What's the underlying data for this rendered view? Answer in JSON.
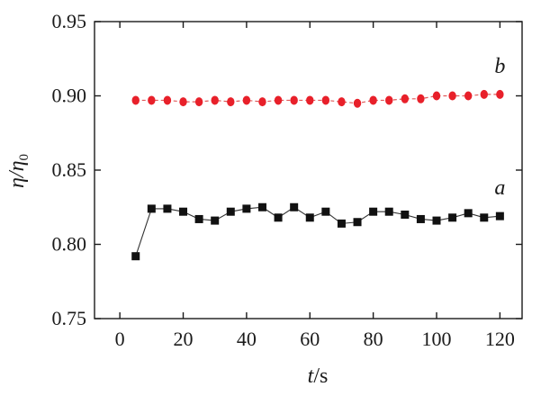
{
  "chart_data": {
    "type": "line",
    "title": "",
    "xlabel": "t/s",
    "ylabel": "η/η0",
    "xlim": [
      -8,
      127
    ],
    "ylim": [
      0.75,
      0.95
    ],
    "x_ticks": [
      0,
      20,
      40,
      60,
      80,
      100,
      120
    ],
    "x_tick_labels": [
      "0",
      "20",
      "40",
      "60",
      "80",
      "100",
      "120"
    ],
    "y_ticks": [
      0.75,
      0.8,
      0.85,
      0.9,
      0.95
    ],
    "y_tick_labels": [
      "0.75",
      "0.80",
      "0.85",
      "0.90",
      "0.95"
    ],
    "grid": false,
    "legend": "none",
    "series": [
      {
        "name": "b",
        "color": "#e8202a",
        "marker": "circle",
        "line_style": "dashed",
        "x": [
          5,
          10,
          15,
          20,
          25,
          30,
          35,
          40,
          45,
          50,
          55,
          60,
          65,
          70,
          75,
          80,
          85,
          90,
          95,
          100,
          105,
          110,
          115,
          120
        ],
        "y": [
          0.897,
          0.897,
          0.897,
          0.896,
          0.896,
          0.897,
          0.896,
          0.897,
          0.896,
          0.897,
          0.897,
          0.897,
          0.897,
          0.896,
          0.895,
          0.897,
          0.897,
          0.898,
          0.898,
          0.9,
          0.9,
          0.9,
          0.901,
          0.901
        ]
      },
      {
        "name": "a",
        "color": "#111111",
        "marker": "square",
        "line_style": "solid",
        "x": [
          5,
          10,
          15,
          20,
          25,
          30,
          35,
          40,
          45,
          50,
          55,
          60,
          65,
          70,
          75,
          80,
          85,
          90,
          95,
          100,
          105,
          110,
          115,
          120
        ],
        "y": [
          0.792,
          0.824,
          0.824,
          0.822,
          0.817,
          0.816,
          0.822,
          0.824,
          0.825,
          0.818,
          0.825,
          0.818,
          0.822,
          0.814,
          0.815,
          0.822,
          0.822,
          0.82,
          0.817,
          0.816,
          0.818,
          0.821,
          0.818,
          0.819
        ]
      }
    ],
    "series_labels": [
      {
        "text": "b",
        "series": "b",
        "at_x": 120
      },
      {
        "text": "a",
        "series": "a",
        "at_x": 120
      }
    ]
  }
}
